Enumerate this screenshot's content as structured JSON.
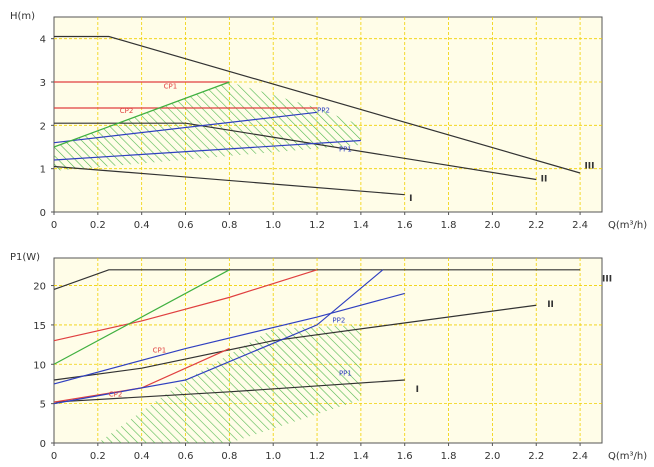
{
  "chart_data": [
    {
      "type": "line",
      "title": "",
      "ylabel": "H(m)",
      "xlabel": "Q(m³/h)",
      "xlim": [
        0,
        2.5
      ],
      "ylim": [
        0,
        4.5
      ],
      "xticks": [
        0,
        0.2,
        0.4,
        0.6,
        0.8,
        1.0,
        1.2,
        1.4,
        1.6,
        1.8,
        2.0,
        2.2,
        2.4
      ],
      "xtick_labels": [
        "0",
        "0.2",
        "0.4",
        "0.6",
        "0.8",
        "1.0",
        "1.2",
        "1.4",
        "1.6",
        "1.8",
        "2.0",
        "2.2",
        "2.4"
      ],
      "yticks": [
        0,
        1,
        2,
        3,
        4
      ],
      "ytick_labels": [
        "0",
        "1",
        "2",
        "3",
        "4"
      ],
      "grid": true,
      "grid_color": "#f0d000",
      "background": "#fffde8",
      "series": [
        {
          "name": "III",
          "color": "#333333",
          "x": [
            0,
            0.25,
            2.4
          ],
          "y": [
            4.05,
            4.05,
            0.9
          ]
        },
        {
          "name": "II",
          "color": "#333333",
          "x": [
            0,
            0.6,
            2.2
          ],
          "y": [
            2.05,
            2.05,
            0.75
          ]
        },
        {
          "name": "I",
          "color": "#333333",
          "x": [
            0,
            0.5,
            1.6
          ],
          "y": [
            1.05,
            0.85,
            0.4
          ]
        },
        {
          "name": "CP1",
          "color": "#e04040",
          "x": [
            0,
            0.8
          ],
          "y": [
            3.0,
            3.0
          ]
        },
        {
          "name": "CP2",
          "color": "#e04040",
          "x": [
            0,
            1.2
          ],
          "y": [
            2.4,
            2.4
          ]
        },
        {
          "name": "PP1",
          "color": "#3040c0",
          "x": [
            0,
            1.4
          ],
          "y": [
            1.2,
            1.65
          ]
        },
        {
          "name": "PP2",
          "color": "#3040c0",
          "x": [
            0,
            1.2
          ],
          "y": [
            1.6,
            2.3
          ]
        },
        {
          "name": "",
          "color": "#40b040",
          "x": [
            0,
            0.8
          ],
          "y": [
            1.5,
            3.0
          ]
        }
      ],
      "hatched_region": {
        "color": "#40b040",
        "x": [
          0,
          0.8,
          1.2,
          1.4,
          1.4,
          0
        ],
        "y": [
          1.5,
          3.0,
          2.4,
          2.0,
          1.55,
          0.95
        ]
      },
      "annotations": [
        {
          "text": "CP1",
          "x": 0.5,
          "y": 2.85,
          "color": "#e04040"
        },
        {
          "text": "CP2",
          "x": 0.3,
          "y": 2.28,
          "color": "#e04040"
        },
        {
          "text": "PP2",
          "x": 1.2,
          "y": 2.3,
          "color": "#3040c0"
        },
        {
          "text": "PP1",
          "x": 1.3,
          "y": 1.4,
          "color": "#3040c0"
        },
        {
          "text": "III",
          "x": 2.42,
          "y": 1.0,
          "color": "#333333"
        },
        {
          "text": "II",
          "x": 2.22,
          "y": 0.7,
          "color": "#333333"
        },
        {
          "text": "I",
          "x": 1.62,
          "y": 0.25,
          "color": "#333333"
        }
      ]
    },
    {
      "type": "line",
      "title": "",
      "ylabel": "P1(W)",
      "xlabel": "Q(m³/h)",
      "xlim": [
        0,
        2.5
      ],
      "ylim": [
        0,
        23.5
      ],
      "xticks": [
        0,
        0.2,
        0.4,
        0.6,
        0.8,
        1.0,
        1.2,
        1.4,
        1.6,
        1.8,
        2.0,
        2.2,
        2.4
      ],
      "xtick_labels": [
        "0",
        "0.2",
        "0.4",
        "0.6",
        "0.8",
        "1.0",
        "1.2",
        "1.4",
        "1.6",
        "1.8",
        "2.0",
        "2.2",
        "2.4"
      ],
      "yticks": [
        0,
        5,
        10,
        15,
        20
      ],
      "ytick_labels": [
        "0",
        "5",
        "10",
        "15",
        "20"
      ],
      "grid": true,
      "grid_color": "#f0d000",
      "background": "#fffde8",
      "series": [
        {
          "name": "III",
          "color": "#333333",
          "x": [
            0,
            0.25,
            2.4
          ],
          "y": [
            19.5,
            22,
            22
          ]
        },
        {
          "name": "II",
          "color": "#333333",
          "x": [
            0,
            0.4,
            1.0,
            2.2
          ],
          "y": [
            8,
            9.5,
            13,
            17.5
          ]
        },
        {
          "name": "I",
          "color": "#333333",
          "x": [
            0,
            0.8,
            1.6
          ],
          "y": [
            5.2,
            6.5,
            8
          ]
        },
        {
          "name": "CP1",
          "color": "#e04040",
          "x": [
            0,
            0.4,
            0.8,
            1.2
          ],
          "y": [
            13,
            15.5,
            18.5,
            22
          ]
        },
        {
          "name": "CP2",
          "color": "#e04040",
          "x": [
            0,
            0.4,
            0.8
          ],
          "y": [
            5.2,
            7,
            12
          ]
        },
        {
          "name": "PP1",
          "color": "#3040c0",
          "x": [
            0,
            0.6,
            1.2,
            1.5
          ],
          "y": [
            5,
            8,
            15,
            22
          ]
        },
        {
          "name": "PP2",
          "color": "#3040c0",
          "x": [
            0,
            0.6,
            1.2,
            1.6
          ],
          "y": [
            7.5,
            12,
            16,
            19
          ]
        },
        {
          "name": "",
          "color": "#40b040",
          "x": [
            0,
            0.8
          ],
          "y": [
            10,
            22
          ]
        }
      ],
      "hatched_region": {
        "color": "#40b040",
        "x": [
          0.2,
          0.6,
          1.0,
          1.4,
          1.4,
          0.8,
          0.2
        ],
        "y": [
          0,
          8,
          14.5,
          15,
          5.5,
          0,
          0
        ]
      },
      "annotations": [
        {
          "text": "PP2",
          "x": 1.27,
          "y": 15.3,
          "color": "#3040c0"
        },
        {
          "text": "CP1",
          "x": 0.45,
          "y": 11.5,
          "color": "#e04040"
        },
        {
          "text": "PP1",
          "x": 1.3,
          "y": 8.6,
          "color": "#3040c0"
        },
        {
          "text": "CP2",
          "x": 0.25,
          "y": 5.9,
          "color": "#e04040"
        },
        {
          "text": "III",
          "x": 2.5,
          "y": 20.5,
          "color": "#333333"
        },
        {
          "text": "II",
          "x": 2.25,
          "y": 17.3,
          "color": "#333333"
        },
        {
          "text": "I",
          "x": 1.65,
          "y": 6.5,
          "color": "#333333"
        }
      ]
    }
  ]
}
